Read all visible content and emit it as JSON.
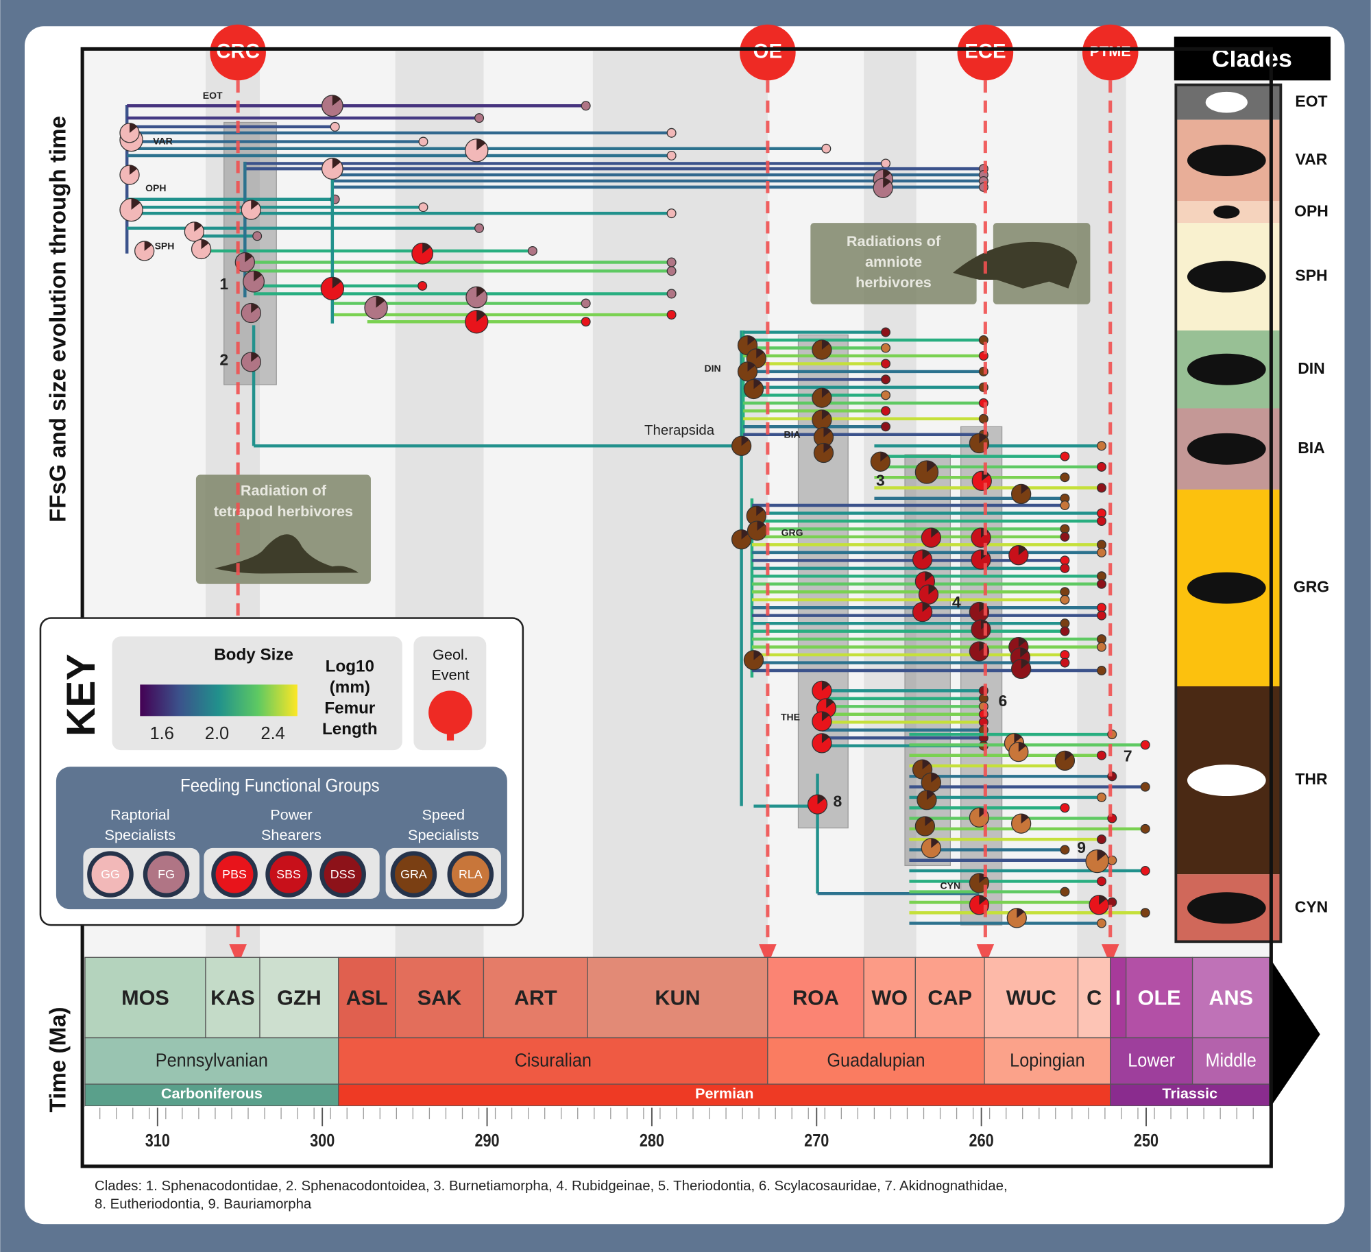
{
  "y_axis_label": "FFsG and size evolution through time",
  "time_label": "Time (Ma)",
  "events": [
    "CRC",
    "OE",
    "ECE",
    "PTME"
  ],
  "clades_panel": {
    "title": "Clades",
    "items": [
      "EOT",
      "VAR",
      "OPH",
      "SPH",
      "DIN",
      "BIA",
      "GRG",
      "THR",
      "CYN"
    ]
  },
  "tree_labels": [
    "EOT",
    "VAR",
    "OPH",
    "SPH",
    "1",
    "2",
    "DIN",
    "Therapsida",
    "BIA",
    "3",
    "GRG",
    "4",
    "6",
    "THE",
    "7",
    "8",
    "9",
    "CYN"
  ],
  "radiations": [
    {
      "lines": [
        "Radiation of",
        "tetrapod herbivores"
      ]
    },
    {
      "lines": [
        "Radiations of",
        "amniote",
        "herbivores"
      ]
    }
  ],
  "stages": [
    "MOS",
    "KAS",
    "GZH",
    "ASL",
    "SAK",
    "ART",
    "KUN",
    "ROA",
    "WO",
    "CAP",
    "WUC",
    "C",
    "I",
    "OLE",
    "ANS"
  ],
  "series": [
    "Pennsylvanian",
    "Cisuralian",
    "Guadalupian",
    "Lopingian",
    "Lower",
    "Middle"
  ],
  "periods": [
    "Carboniferous",
    "Permian",
    "Triassic"
  ],
  "time_ticks": [
    310,
    300,
    290,
    280,
    270,
    260,
    250
  ],
  "key": {
    "title": "KEY",
    "body_size": {
      "title": "Body Size",
      "ticks": [
        "1.6",
        "2.0",
        "2.4"
      ],
      "unit_lines": [
        "Log10",
        "(mm)",
        "Femur",
        "Length"
      ]
    },
    "geol_event": [
      "Geol.",
      "Event"
    ],
    "ffg": {
      "title": "Feeding Functional Groups",
      "groups": [
        {
          "name_lines": [
            "Raptorial",
            "Specialists"
          ],
          "codes": [
            "GG",
            "FG"
          ]
        },
        {
          "name_lines": [
            "Power",
            "Shearers"
          ],
          "codes": [
            "PBS",
            "SBS",
            "DSS"
          ]
        },
        {
          "name_lines": [
            "Speed",
            "Specialists"
          ],
          "codes": [
            "GRA",
            "RLA"
          ]
        }
      ]
    }
  },
  "footnote": [
    "Clades: 1. Sphenacodontidae, 2. Sphenacodontoidea, 3. Burnetiamorpha, 4. Rubidgeinae, 5. Theriodontia, 6. Scylacosauridae, 7. Akidnognathidae,",
    "8. Eutheriodontia,  9. Bauriamorpha"
  ]
}
